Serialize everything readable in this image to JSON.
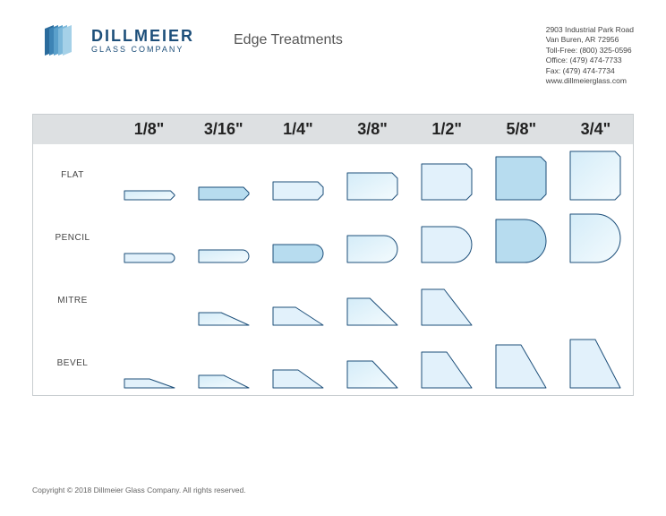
{
  "brand": {
    "name_line1": "DILLMEIER",
    "name_line2": "GLASS COMPANY",
    "logo_colors": [
      "#2a6b9c",
      "#3d84b5",
      "#5aa0cb",
      "#7cb8da",
      "#a5d1e8"
    ]
  },
  "page_title": "Edge Treatments",
  "contact": {
    "addr1": "2903 Industrial Park Road",
    "addr2": "Van Buren, AR 72956",
    "tollfree": "Toll-Free: (800) 325-0596",
    "office": "Office:     (479) 474-7733",
    "fax": "Fax:         (479) 474-7734",
    "web": "www.dillmeierglass.com"
  },
  "chart": {
    "columns": [
      "1/8\"",
      "3/16\"",
      "1/4\"",
      "3/8\"",
      "1/2\"",
      "5/8\"",
      "3/4\""
    ],
    "row_labels": [
      "FLAT",
      "PENCIL",
      "MITRE",
      "BEVEL"
    ],
    "glass_stroke": "#1d4f7a",
    "glass_fill_dark": "#b7dcef",
    "glass_fill_light": "#e2f1fb",
    "glass_gradient_from": "#d4ecf8",
    "glass_gradient_to": "#f4fbfe",
    "shapes": {
      "heights": [
        10,
        14,
        20,
        30,
        40,
        48,
        54
      ],
      "base_width": 56,
      "flat": {
        "corner": 6,
        "fills": [
          "grad",
          "dark",
          "light",
          "grad",
          "light",
          "dark",
          "grad"
        ],
        "present": [
          1,
          1,
          1,
          1,
          1,
          1,
          1
        ]
      },
      "pencil": {
        "fills": [
          "light",
          "grad",
          "dark",
          "grad",
          "light",
          "dark",
          "grad"
        ],
        "present": [
          1,
          1,
          1,
          1,
          1,
          1,
          1
        ]
      },
      "mitre": {
        "cut": 0.55,
        "fills": [
          "",
          "grad",
          "light",
          "grad",
          "light",
          "",
          ""
        ],
        "present": [
          0,
          1,
          1,
          1,
          1,
          0,
          0
        ]
      },
      "bevel": {
        "cut": 0.5,
        "fills": [
          "light",
          "grad",
          "light",
          "grad",
          "light",
          "light",
          "light"
        ],
        "present": [
          1,
          1,
          1,
          1,
          1,
          1,
          1
        ]
      }
    }
  },
  "copyright": "Copyright © 2018 Dillmeier Glass Company. All rights reserved."
}
